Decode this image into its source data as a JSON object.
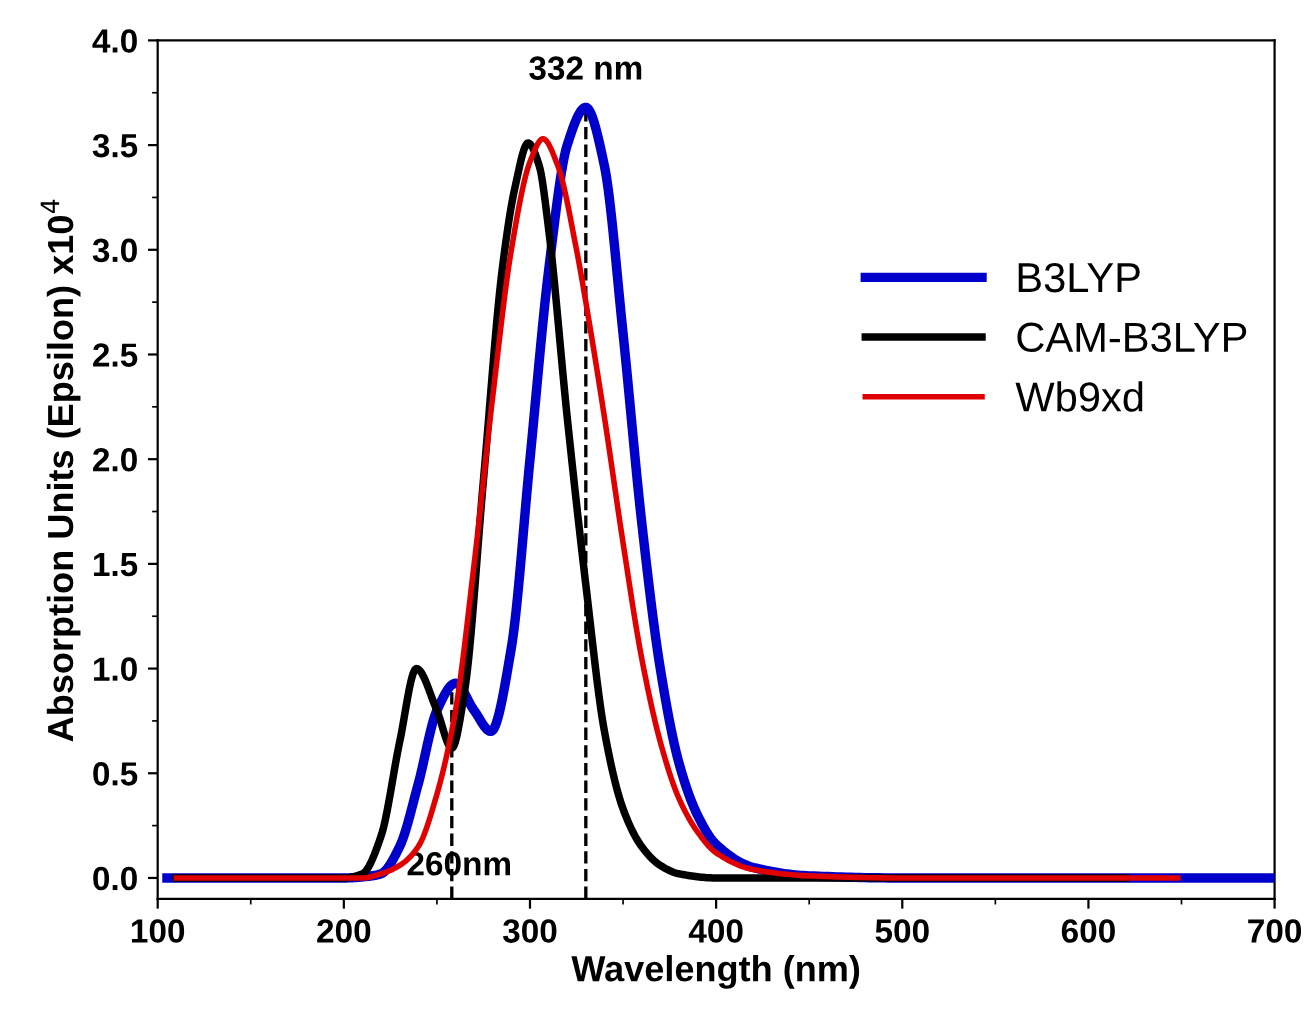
{
  "chart_data": {
    "type": "line",
    "xlabel": "Wavelength (nm)",
    "ylabel": "Absorption Units (Epsilon) x10$^{4}$",
    "xlim": [
      100,
      700
    ],
    "xticks": [
      100,
      200,
      300,
      400,
      500,
      600,
      700
    ],
    "ylim": [
      -0.1,
      4.0
    ],
    "yticks": [
      {
        "value": 0,
        "label": "0.0"
      },
      0.5,
      {
        "value": 1,
        "label": "1.0"
      },
      1.5,
      {
        "value": 2,
        "label": "2.0"
      },
      2.5,
      {
        "value": 3,
        "label": "3.0"
      },
      3.5,
      {
        "value": 4,
        "label": "4.0"
      }
    ],
    "grid": false,
    "legend": "right",
    "marker": "none",
    "line_style": "solid",
    "series": [
      {
        "name": "B3LYP",
        "color": "#0000cc",
        "x": [
          105,
          200,
          215,
          220,
          230,
          240,
          250,
          260,
          270,
          279,
          290,
          300,
          310,
          320,
          330,
          340,
          350,
          360,
          370,
          380,
          390,
          400,
          420,
          450,
          500,
          700
        ],
        "values": [
          0,
          0,
          0.01,
          0.02,
          0.15,
          0.45,
          0.8,
          0.93,
          0.8,
          0.7,
          1.1,
          2.0,
          2.9,
          3.5,
          3.68,
          3.4,
          2.6,
          1.7,
          1.0,
          0.55,
          0.3,
          0.16,
          0.05,
          0.01,
          0,
          0
        ]
      },
      {
        "name": "CAM-B3LYP",
        "color": "#000000",
        "x": [
          110,
          200,
          210,
          220,
          230,
          239,
          250,
          258,
          265,
          275,
          285,
          292,
          299,
          305,
          310,
          320,
          330,
          340,
          350,
          360,
          370,
          380,
          400,
          620
        ],
        "values": [
          0,
          0,
          0.02,
          0.2,
          0.65,
          1.0,
          0.8,
          0.62,
          0.9,
          1.9,
          2.9,
          3.3,
          3.51,
          3.4,
          3.1,
          2.2,
          1.4,
          0.7,
          0.33,
          0.15,
          0.06,
          0.02,
          0,
          0
        ]
      },
      {
        "name": "Wb9xd",
        "color": "#e00000",
        "x": [
          110,
          210,
          220,
          230,
          240,
          250,
          260,
          270,
          280,
          290,
          300,
          307,
          315,
          325,
          330,
          340,
          350,
          360,
          370,
          380,
          390,
          400,
          420,
          450,
          500,
          648
        ],
        "values": [
          0,
          0,
          0.02,
          0.06,
          0.15,
          0.4,
          0.8,
          1.5,
          2.3,
          3.0,
          3.42,
          3.53,
          3.4,
          3.0,
          2.75,
          2.2,
          1.6,
          1.05,
          0.65,
          0.38,
          0.22,
          0.12,
          0.04,
          0.01,
          0,
          0
        ]
      }
    ],
    "ref_lines": [
      {
        "axis": "x",
        "value": 258,
        "label": "260nm",
        "color": "#000000",
        "line_style": "dashed"
      },
      {
        "axis": "x",
        "value": 330,
        "label": "332 nm",
        "color": "#000000",
        "line_style": "dashed"
      }
    ]
  }
}
